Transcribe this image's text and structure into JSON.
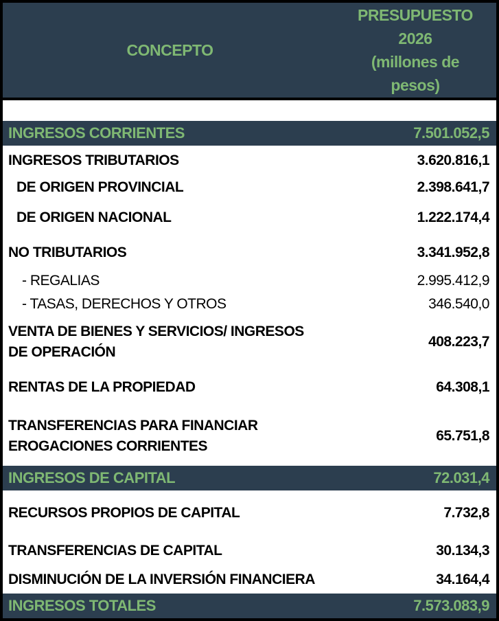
{
  "header": {
    "concept_label": "CONCEPTO",
    "budget_line1": "PRESUPUESTO",
    "budget_line2": "2026",
    "budget_line3": "(millones de",
    "budget_line4": "pesos)"
  },
  "colors": {
    "header_bg": "#2C3E4F",
    "accent_green": "#7FB873",
    "border": "#000000",
    "row_bg": "#FFFFFF",
    "row_text": "#000000"
  },
  "rows": [
    {
      "label": "INGRESOS CORRIENTES",
      "value": "7.501.052,5",
      "style": "section"
    },
    {
      "label": "INGRESOS TRIBUTARIOS",
      "value": "3.620.816,1",
      "style": "bold"
    },
    {
      "label": "DE ORIGEN PROVINCIAL",
      "value": "2.398.641,7",
      "style": "bold-indent1"
    },
    {
      "label": "DE ORIGEN NACIONAL",
      "value": "1.222.174,4",
      "style": "bold-indent1"
    },
    {
      "label": "NO TRIBUTARIOS",
      "value": "3.341.952,8",
      "style": "bold"
    },
    {
      "label": "- REGALIAS",
      "value": "2.995.412,9",
      "style": "normal-indent2"
    },
    {
      "label": "- TASAS, DERECHOS Y OTROS",
      "value": "346.540,0",
      "style": "normal-indent2"
    },
    {
      "label": "VENTA DE BIENES Y SERVICIOS/ INGRESOS",
      "label2": "DE OPERACIÓN",
      "value": "408.223,7",
      "style": "bold-2line"
    },
    {
      "label": "RENTAS DE LA PROPIEDAD",
      "value": "64.308,1",
      "style": "bold"
    },
    {
      "label": "TRANSFERENCIAS PARA FINANCIAR",
      "label2": "EROGACIONES CORRIENTES",
      "value": "65.751,8",
      "style": "bold-2line"
    },
    {
      "label": "INGRESOS DE CAPITAL",
      "value": "72.031,4",
      "style": "section"
    },
    {
      "label": "RECURSOS PROPIOS DE CAPITAL",
      "value": "7.732,8",
      "style": "bold"
    },
    {
      "label": "TRANSFERENCIAS DE CAPITAL",
      "value": "30.134,3",
      "style": "bold"
    },
    {
      "label": "DISMINUCIÓN DE LA INVERSIÓN FINANCIERA",
      "value": "34.164,4",
      "style": "bold"
    },
    {
      "label": "INGRESOS TOTALES",
      "value": "7.573.083,9",
      "style": "section"
    }
  ],
  "chart_data": {
    "type": "table",
    "title": "PRESUPUESTO 2026 (millones de pesos)",
    "columns": [
      "CONCEPTO",
      "PRESUPUESTO 2026 (millones de pesos)"
    ],
    "rows": [
      [
        "INGRESOS CORRIENTES",
        7501052.5
      ],
      [
        "INGRESOS TRIBUTARIOS",
        3620816.1
      ],
      [
        "DE ORIGEN PROVINCIAL",
        2398641.7
      ],
      [
        "DE ORIGEN NACIONAL",
        1222174.4
      ],
      [
        "NO TRIBUTARIOS",
        3341952.8
      ],
      [
        "REGALIAS",
        2995412.9
      ],
      [
        "TASAS, DERECHOS Y OTROS",
        346540.0
      ],
      [
        "VENTA DE BIENES Y SERVICIOS/ INGRESOS DE OPERACIÓN",
        408223.7
      ],
      [
        "RENTAS DE LA PROPIEDAD",
        64308.1
      ],
      [
        "TRANSFERENCIAS PARA FINANCIAR EROGACIONES CORRIENTES",
        65751.8
      ],
      [
        "INGRESOS DE CAPITAL",
        72031.4
      ],
      [
        "RECURSOS PROPIOS DE CAPITAL",
        7732.8
      ],
      [
        "TRANSFERENCIAS DE CAPITAL",
        30134.3
      ],
      [
        "DISMINUCIÓN DE LA INVERSIÓN FINANCIERA",
        34164.4
      ],
      [
        "INGRESOS TOTALES",
        7573083.9
      ]
    ]
  }
}
